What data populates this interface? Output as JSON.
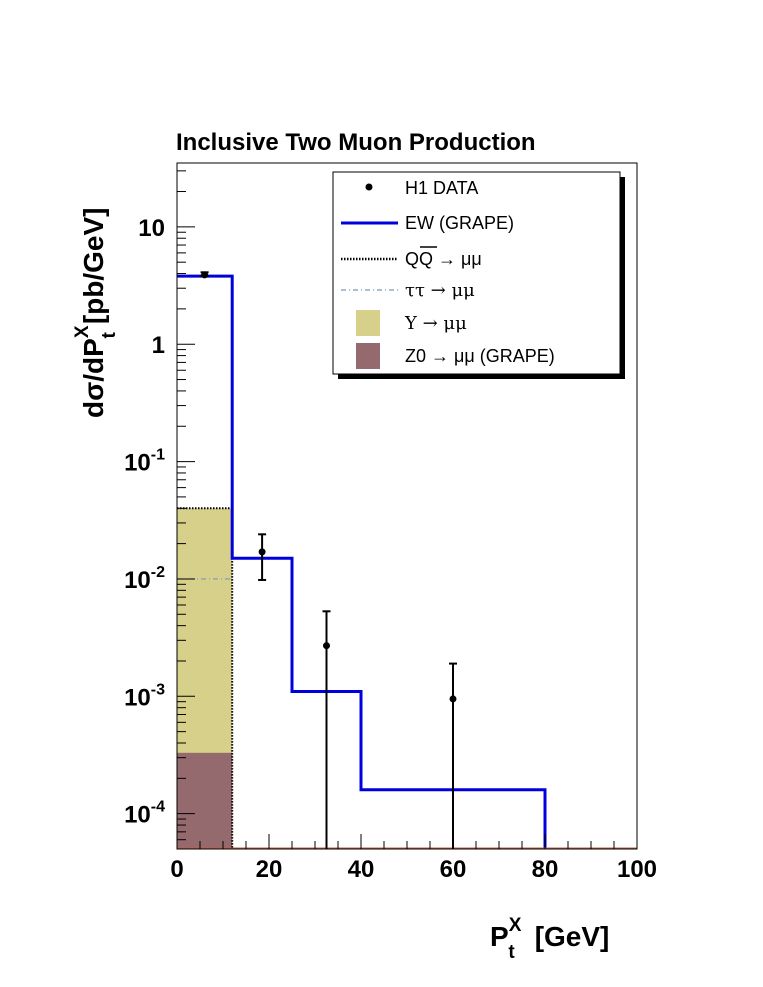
{
  "chart_data": {
    "type": "histogram",
    "title": "Inclusive Two  Muon Production",
    "xlabel": {
      "base": "P",
      "sup": "X",
      "sub": "t",
      "unit": "[GeV]"
    },
    "ylabel": {
      "prefix": "dσ/dP",
      "sup": "X",
      "sub": "t",
      "unit": "[pb/GeV]"
    },
    "xlim": [
      0,
      100
    ],
    "ylim": [
      5e-05,
      35
    ],
    "yscale": "log",
    "x_ticks": [
      "0",
      "20",
      "40",
      "60",
      "80",
      "100"
    ],
    "y_ticks": [
      {
        "value": 0.0001,
        "base": "10",
        "exp": "-4"
      },
      {
        "value": 0.001,
        "base": "10",
        "exp": "-3"
      },
      {
        "value": 0.01,
        "base": "10",
        "exp": "-2"
      },
      {
        "value": 0.1,
        "base": "10",
        "exp": "-1"
      },
      {
        "value": 1,
        "base": "1",
        "exp": ""
      },
      {
        "value": 10,
        "base": "10",
        "exp": ""
      }
    ],
    "legend_position": "top-right",
    "legend": [
      {
        "key": "data",
        "label": "H1 DATA"
      },
      {
        "key": "ew",
        "label": "EW (GRAPE)"
      },
      {
        "key": "qq",
        "label": "QQ → μμ"
      },
      {
        "key": "tautau",
        "label": "ττ → μμ"
      },
      {
        "key": "upsilon",
        "label": "Υ → μμ"
      },
      {
        "key": "z0",
        "label": "Z0 → μμ (GRAPE)"
      }
    ],
    "series": [
      {
        "key": "ew",
        "kind": "step",
        "color": "#0000dd",
        "bins": [
          [
            0,
            12,
            3.8
          ],
          [
            12,
            25,
            0.015
          ],
          [
            25,
            40,
            0.0011
          ],
          [
            40,
            80,
            0.00016
          ]
        ]
      },
      {
        "key": "upsilon",
        "kind": "filled",
        "color": "#d6d08a",
        "bins": [
          [
            0,
            12,
            0.04
          ]
        ]
      },
      {
        "key": "z0",
        "kind": "filled",
        "color": "#946a6e",
        "bins": [
          [
            0,
            12,
            0.00033
          ]
        ]
      },
      {
        "key": "qq",
        "kind": "dotted",
        "color": "#000000",
        "bins": [
          [
            0,
            12,
            0.04
          ]
        ]
      },
      {
        "key": "tautau",
        "kind": "dashdot",
        "color": "#7a9bb8",
        "bins": [
          [
            0,
            12,
            0.01
          ]
        ]
      },
      {
        "key": "data",
        "kind": "points",
        "color": "#000000",
        "points": [
          {
            "x": 6,
            "y": 3.9,
            "ylo": 3.8,
            "yhi": 4.1
          },
          {
            "x": 18.5,
            "y": 0.017,
            "ylo": 0.0098,
            "yhi": 0.024
          },
          {
            "x": 32.5,
            "y": 0.0027,
            "ylo": 5e-05,
            "yhi": 0.0053
          },
          {
            "x": 60,
            "y": 0.00095,
            "ylo": 5e-05,
            "yhi": 0.0019
          }
        ]
      }
    ]
  }
}
